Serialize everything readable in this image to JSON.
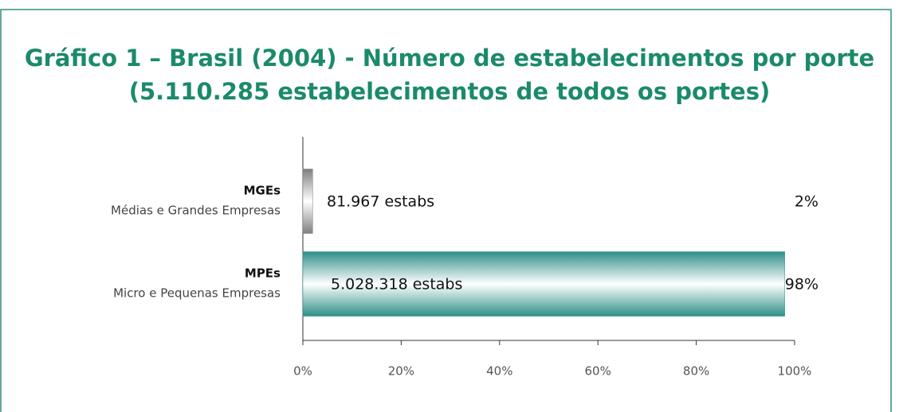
{
  "chart_data": {
    "type": "hbar",
    "title": [
      "Gráfico 1 – Brasil (2004) - Número de estabelecimentos por porte",
      "(5.110.285 estabelecimentos de todos os portes)"
    ],
    "categories": [
      "MGEs",
      "MPEs"
    ],
    "category_descriptions": [
      "Médias e Grandes Empresas",
      "Micro e Pequenas Empresas"
    ],
    "values": [
      2,
      98
    ],
    "value_labels": [
      "2%",
      "98%"
    ],
    "bar_labels": [
      "81.967 estabs",
      "5.028.318 estabs"
    ],
    "colors": [
      "#808080",
      "#2e8f88"
    ],
    "xlim": [
      0,
      100
    ],
    "xticks": [
      {
        "value": 0,
        "label": "0%"
      },
      {
        "value": 20,
        "label": "20%"
      },
      {
        "value": 40,
        "label": "40%"
      },
      {
        "value": 60,
        "label": "60%"
      },
      {
        "value": 80,
        "label": "80%"
      },
      {
        "value": 100,
        "label": "100%"
      }
    ]
  }
}
